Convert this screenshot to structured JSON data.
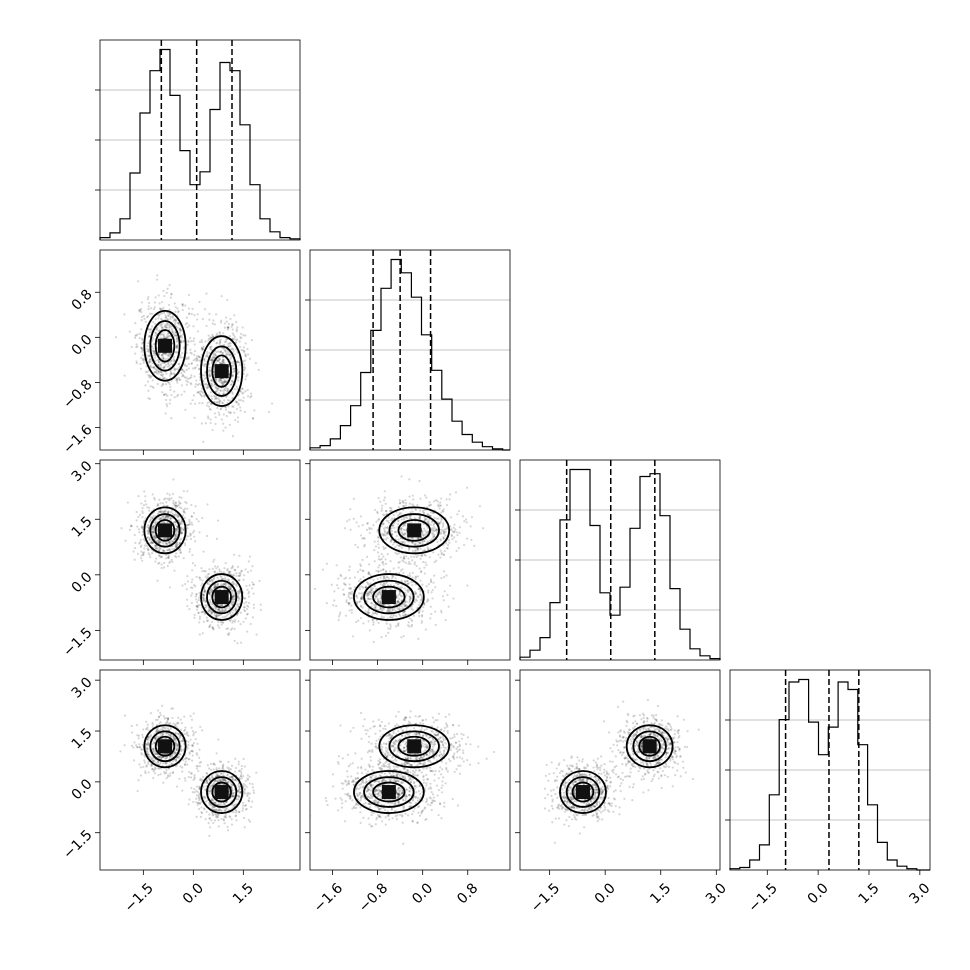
{
  "chart_data": {
    "type": "corner",
    "title": "",
    "n_params": 4,
    "parameter_labels": [
      "",
      "",
      "",
      ""
    ],
    "axis_ticks": [
      {
        "values": [
          -1.5,
          0.0,
          1.5
        ],
        "labels": [
          "−1.5",
          "0.0",
          "1.5"
        ]
      },
      {
        "values": [
          -1.6,
          -0.8,
          0.0,
          0.8
        ],
        "labels": [
          "−1.6",
          "−0.8",
          "0.0",
          "0.8"
        ]
      },
      {
        "values": [
          -1.5,
          0.0,
          1.5,
          3.0
        ],
        "labels": [
          "−1.5",
          "0.0",
          "1.5",
          "3.0"
        ]
      },
      {
        "values": [
          -1.5,
          0.0,
          1.5,
          3.0
        ],
        "labels": [
          "−1.5",
          "0.0",
          "1.5",
          "3.0"
        ]
      }
    ],
    "axis_ranges": [
      [
        -2.8,
        3.2
      ],
      [
        -2.0,
        1.55
      ],
      [
        -2.3,
        3.1
      ],
      [
        -2.6,
        3.3
      ]
    ],
    "grid": true,
    "quantiles": [
      0.16,
      0.5,
      0.84
    ],
    "histograms": [
      {
        "param": 0,
        "quantile_values": [
          -0.96,
          0.1,
          1.16
        ],
        "bins": [
          -2.8,
          -2.5,
          -2.2,
          -1.9,
          -1.6,
          -1.3,
          -1.0,
          -0.7,
          -0.4,
          -0.1,
          0.2,
          0.5,
          0.8,
          1.1,
          1.4,
          1.7,
          2.0,
          2.3,
          2.6,
          2.9,
          3.2
        ],
        "counts": [
          2,
          6,
          18,
          57,
          108,
          144,
          162,
          123,
          76,
          47,
          58,
          111,
          151,
          144,
          98,
          47,
          18,
          7,
          2,
          1
        ]
      },
      {
        "param": 1,
        "quantile_values": [
          -0.88,
          -0.4,
          0.14
        ],
        "bins": [
          -2.0,
          -1.82,
          -1.64,
          -1.46,
          -1.28,
          -1.1,
          -0.92,
          -0.74,
          -0.56,
          -0.38,
          -0.2,
          -0.02,
          0.16,
          0.34,
          0.52,
          0.7,
          0.88,
          1.06,
          1.24,
          1.42,
          1.55
        ],
        "counts": [
          2,
          4,
          10,
          22,
          40,
          70,
          108,
          146,
          172,
          160,
          138,
          104,
          72,
          46,
          26,
          14,
          7,
          3,
          1,
          0
        ]
      },
      {
        "param": 2,
        "quantile_values": [
          -1.04,
          0.15,
          1.34
        ],
        "bins": [
          -2.3,
          -2.03,
          -1.76,
          -1.49,
          -1.22,
          -0.95,
          -0.68,
          -0.41,
          -0.14,
          0.13,
          0.4,
          0.67,
          0.94,
          1.21,
          1.48,
          1.75,
          2.02,
          2.29,
          2.56,
          2.83,
          3.1
        ],
        "counts": [
          2,
          7,
          16,
          41,
          100,
          136,
          136,
          96,
          48,
          32,
          52,
          94,
          131,
          133,
          103,
          51,
          22,
          8,
          3,
          1
        ]
      },
      {
        "param": 3,
        "quantile_values": [
          -0.96,
          0.32,
          1.2
        ],
        "bins": [
          -2.6,
          -2.31,
          -2.02,
          -1.73,
          -1.44,
          -1.15,
          -0.86,
          -0.57,
          -0.28,
          0.01,
          0.3,
          0.59,
          0.88,
          1.17,
          1.46,
          1.75,
          2.04,
          2.33,
          2.62,
          2.91,
          3.3
        ],
        "counts": [
          1,
          2,
          8,
          20,
          60,
          120,
          150,
          152,
          118,
          92,
          114,
          150,
          144,
          100,
          52,
          22,
          8,
          3,
          1,
          0
        ]
      }
    ],
    "density_panels": [
      {
        "x_param": 0,
        "y_param": 1,
        "modes": [
          [
            -0.85,
            -0.15
          ],
          [
            0.85,
            -0.6
          ]
        ]
      },
      {
        "x_param": 0,
        "y_param": 2,
        "modes": [
          [
            -0.85,
            1.2
          ],
          [
            0.85,
            -0.6
          ]
        ]
      },
      {
        "x_param": 1,
        "y_param": 2,
        "modes": [
          [
            -0.15,
            1.2
          ],
          [
            -0.6,
            -0.6
          ]
        ]
      },
      {
        "x_param": 0,
        "y_param": 3,
        "modes": [
          [
            -0.85,
            1.05
          ],
          [
            0.85,
            -0.3
          ]
        ]
      },
      {
        "x_param": 1,
        "y_param": 3,
        "modes": [
          [
            -0.15,
            1.05
          ],
          [
            -0.6,
            -0.3
          ]
        ]
      },
      {
        "x_param": 2,
        "y_param": 3,
        "modes": [
          [
            -0.6,
            -0.3
          ],
          [
            1.2,
            1.05
          ]
        ]
      }
    ]
  }
}
